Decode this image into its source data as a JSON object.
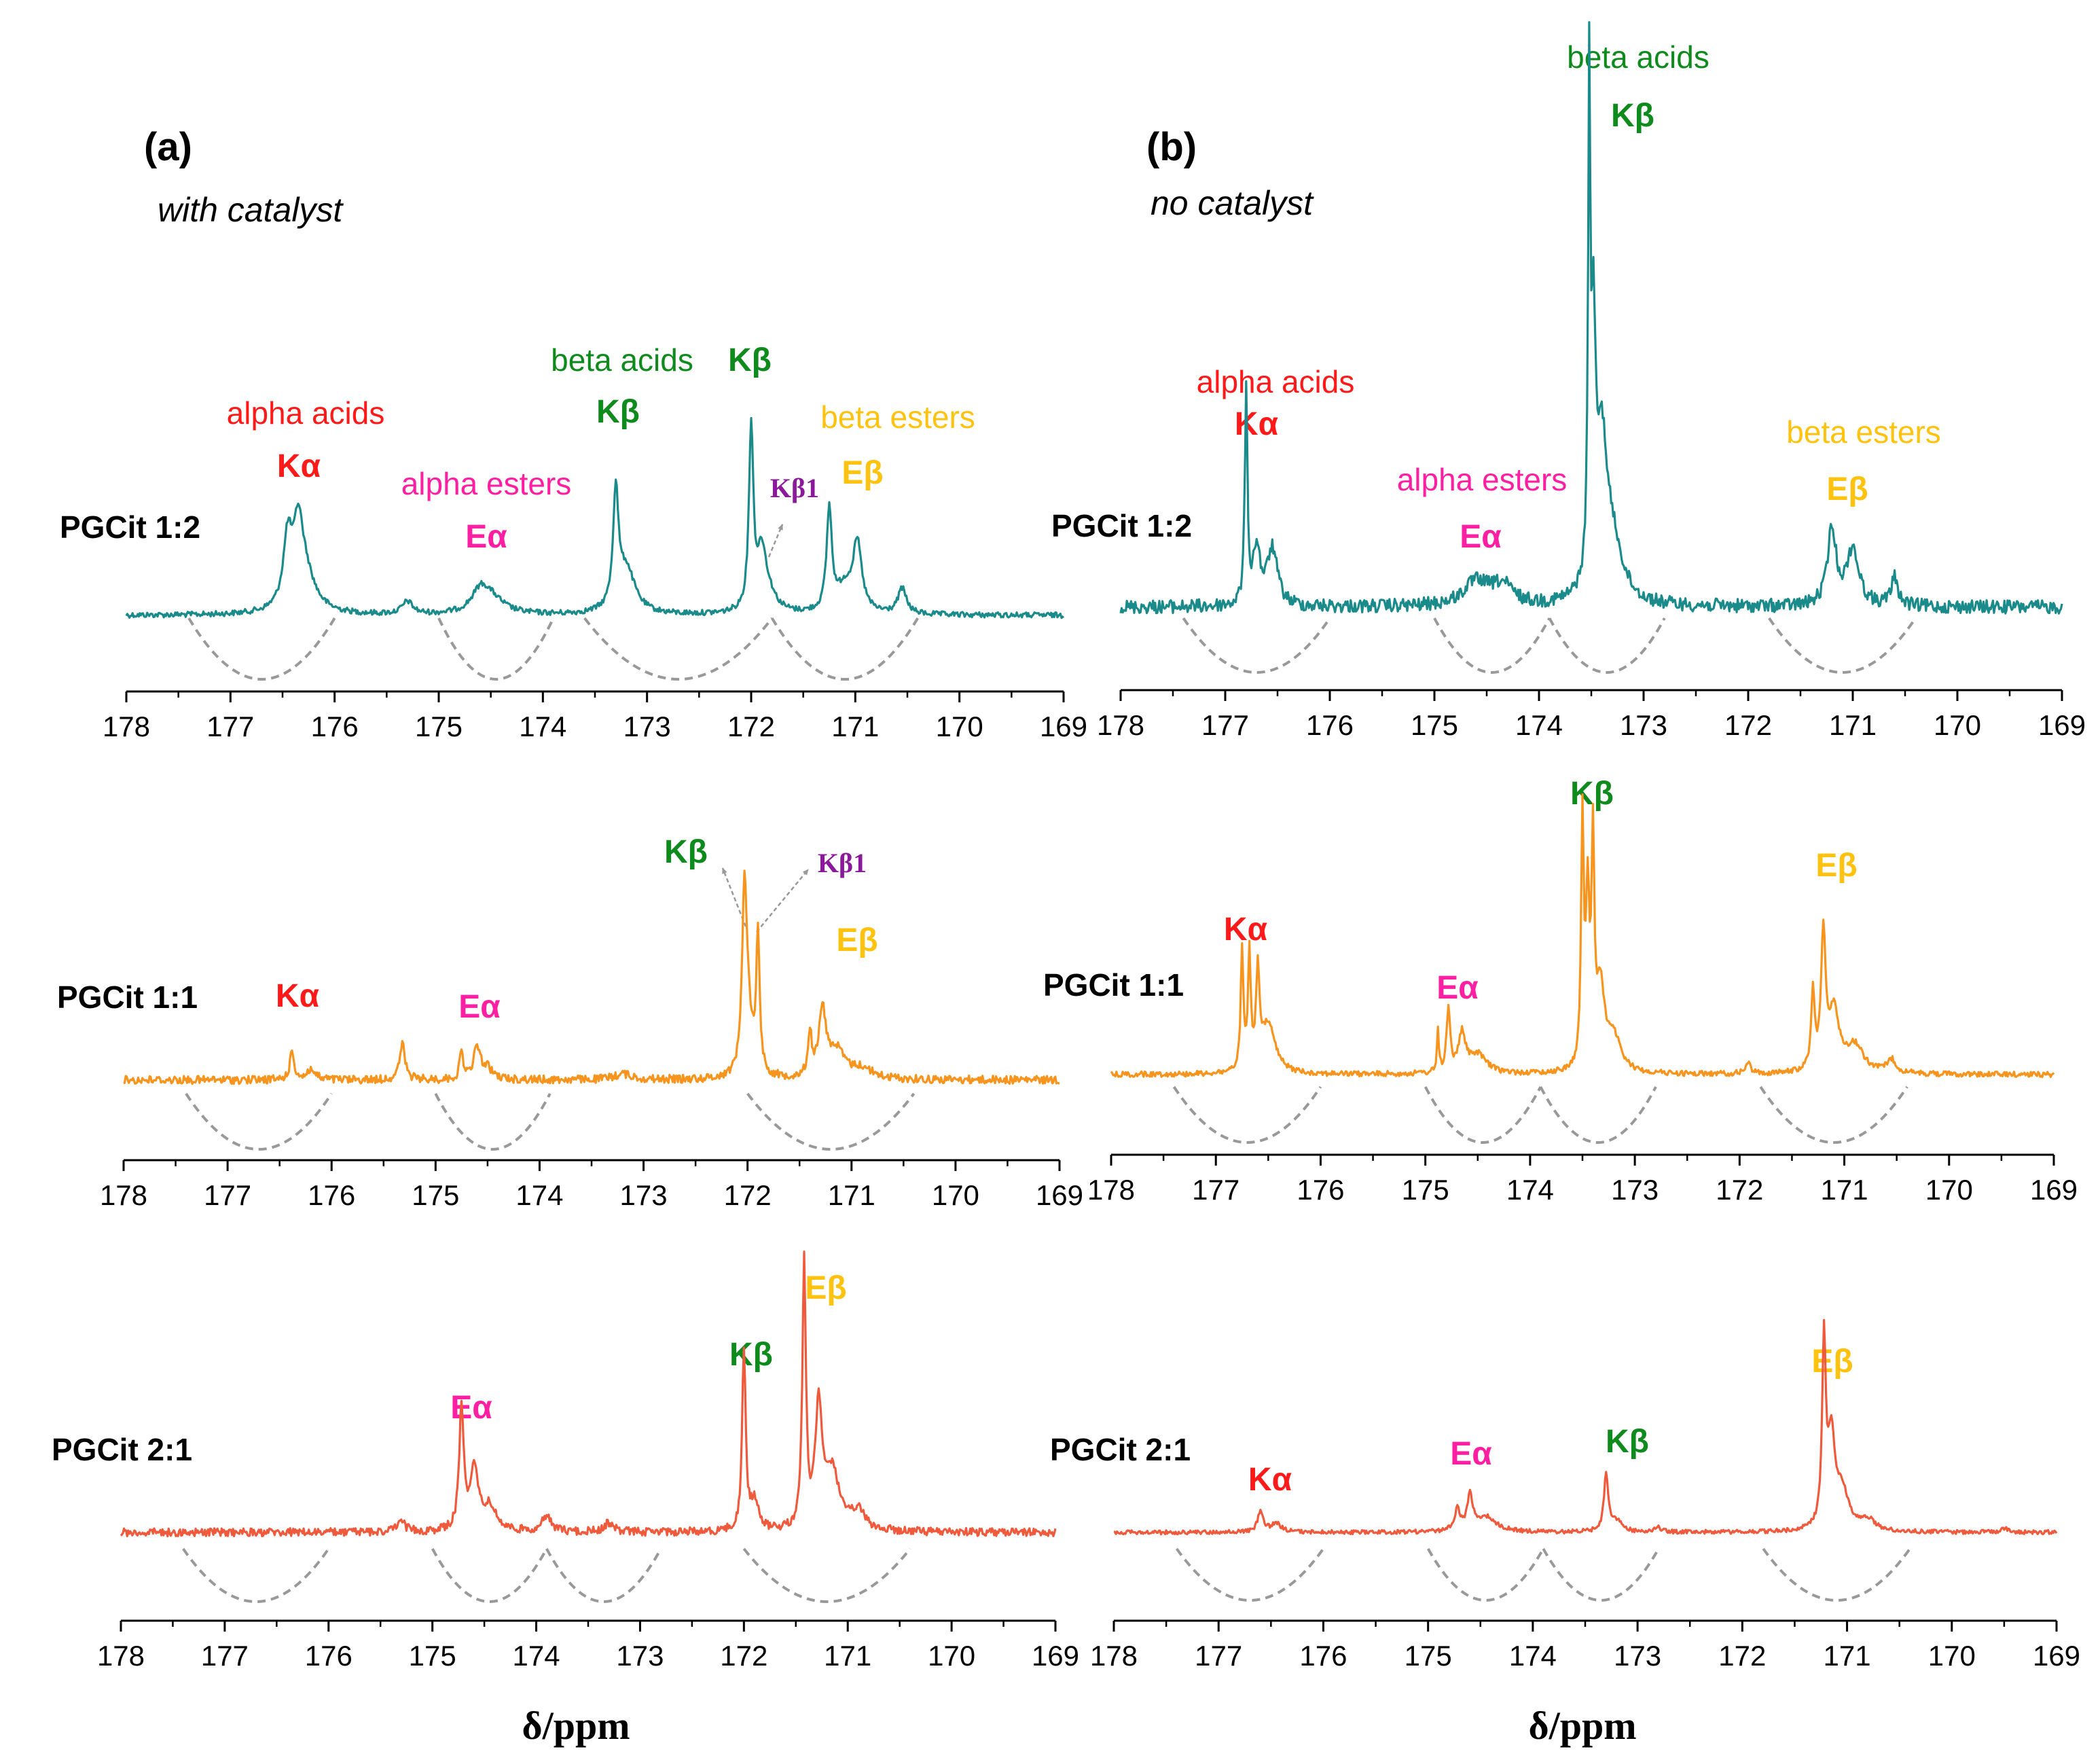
{
  "colors": {
    "teal": "#1a8a8a",
    "orange": "#f7941d",
    "red_orange": "#ef5a3c",
    "alpha_acid": "#ff1a1a",
    "alpha_ester": "#ff1fa3",
    "beta_acid": "#0f8a1c",
    "beta_ester": "#ffc20e",
    "k_beta1": "#8b1a9b",
    "bracket": "#999999"
  },
  "panels": {
    "a": {
      "letter": "(a)",
      "note": "with catalyst"
    },
    "b": {
      "letter": "(b)",
      "note": "no catalyst"
    }
  },
  "axis": {
    "title": "δ/ppm",
    "ticks": [
      "178",
      "177",
      "176",
      "175",
      "174",
      "173",
      "172",
      "171",
      "170",
      "169"
    ]
  },
  "chart_data": [
    {
      "type": "line",
      "panel": "a",
      "sample": "PGCit 1:2",
      "xlim": [
        178,
        169
      ],
      "color": "#1a8a8a",
      "peaks": [
        {
          "ppm": 176.45,
          "height": 0.26,
          "width": 0.05
        },
        {
          "ppm": 176.35,
          "height": 0.24,
          "width": 0.05
        },
        {
          "ppm": 176.3,
          "height": 0.18,
          "width": 0.12
        },
        {
          "ppm": 175.3,
          "height": 0.05,
          "width": 0.06
        },
        {
          "ppm": 174.6,
          "height": 0.08,
          "width": 0.1
        },
        {
          "ppm": 174.5,
          "height": 0.06,
          "width": 0.15
        },
        {
          "ppm": 173.3,
          "height": 0.45,
          "width": 0.03
        },
        {
          "ppm": 173.2,
          "height": 0.18,
          "width": 0.1
        },
        {
          "ppm": 172.0,
          "height": 0.72,
          "width": 0.025
        },
        {
          "ppm": 171.9,
          "height": 0.2,
          "width": 0.05
        },
        {
          "ppm": 171.85,
          "height": 0.08,
          "width": 0.1
        },
        {
          "ppm": 171.25,
          "height": 0.4,
          "width": 0.03
        },
        {
          "ppm": 171.1,
          "height": 0.1,
          "width": 0.1
        },
        {
          "ppm": 170.98,
          "height": 0.26,
          "width": 0.05
        },
        {
          "ppm": 170.55,
          "height": 0.1,
          "width": 0.05
        }
      ]
    },
    {
      "type": "line",
      "panel": "b",
      "sample": "PGCit 1:2",
      "xlim": [
        178,
        169
      ],
      "color": "#1a8a8a",
      "peaks": [
        {
          "ppm": 176.8,
          "height": 0.45,
          "width": 0.015
        },
        {
          "ppm": 176.7,
          "height": 0.12,
          "width": 0.04
        },
        {
          "ppm": 176.55,
          "height": 0.12,
          "width": 0.06
        },
        {
          "ppm": 174.6,
          "height": 0.05,
          "width": 0.15
        },
        {
          "ppm": 174.35,
          "height": 0.04,
          "width": 0.12
        },
        {
          "ppm": 173.52,
          "height": 1.0,
          "width": 0.012
        },
        {
          "ppm": 173.48,
          "height": 0.5,
          "width": 0.025
        },
        {
          "ppm": 173.4,
          "height": 0.3,
          "width": 0.06
        },
        {
          "ppm": 173.3,
          "height": 0.12,
          "width": 0.12
        },
        {
          "ppm": 171.2,
          "height": 0.16,
          "width": 0.05
        },
        {
          "ppm": 171.0,
          "height": 0.12,
          "width": 0.07
        },
        {
          "ppm": 170.6,
          "height": 0.06,
          "width": 0.04
        }
      ]
    },
    {
      "type": "line",
      "panel": "a",
      "sample": "PGCit 1:1",
      "xlim": [
        178,
        169
      ],
      "color": "#f7941d",
      "peaks": [
        {
          "ppm": 176.38,
          "height": 0.14,
          "width": 0.025
        },
        {
          "ppm": 176.2,
          "height": 0.05,
          "width": 0.05
        },
        {
          "ppm": 175.32,
          "height": 0.18,
          "width": 0.03
        },
        {
          "ppm": 174.75,
          "height": 0.14,
          "width": 0.02
        },
        {
          "ppm": 174.6,
          "height": 0.16,
          "width": 0.04
        },
        {
          "ppm": 174.5,
          "height": 0.05,
          "width": 0.06
        },
        {
          "ppm": 173.2,
          "height": 0.03,
          "width": 0.1
        },
        {
          "ppm": 172.03,
          "height": 0.82,
          "width": 0.025
        },
        {
          "ppm": 172.0,
          "height": 0.3,
          "width": 0.05
        },
        {
          "ppm": 171.9,
          "height": 0.68,
          "width": 0.02
        },
        {
          "ppm": 171.4,
          "height": 0.22,
          "width": 0.02
        },
        {
          "ppm": 171.28,
          "height": 0.32,
          "width": 0.04
        },
        {
          "ppm": 171.15,
          "height": 0.14,
          "width": 0.1
        },
        {
          "ppm": 170.9,
          "height": 0.05,
          "width": 0.12
        }
      ]
    },
    {
      "type": "line",
      "panel": "b",
      "sample": "PGCit 1:1",
      "xlim": [
        178,
        169
      ],
      "color": "#f7941d",
      "peaks": [
        {
          "ppm": 176.75,
          "height": 0.44,
          "width": 0.015
        },
        {
          "ppm": 176.68,
          "height": 0.42,
          "width": 0.015
        },
        {
          "ppm": 176.6,
          "height": 0.34,
          "width": 0.02
        },
        {
          "ppm": 176.5,
          "height": 0.18,
          "width": 0.08
        },
        {
          "ppm": 174.88,
          "height": 0.16,
          "width": 0.01
        },
        {
          "ppm": 174.78,
          "height": 0.24,
          "width": 0.02
        },
        {
          "ppm": 174.65,
          "height": 0.14,
          "width": 0.04
        },
        {
          "ppm": 174.5,
          "height": 0.07,
          "width": 0.1
        },
        {
          "ppm": 173.5,
          "height": 0.9,
          "width": 0.015
        },
        {
          "ppm": 173.45,
          "height": 0.6,
          "width": 0.02
        },
        {
          "ppm": 173.4,
          "height": 0.78,
          "width": 0.015
        },
        {
          "ppm": 173.33,
          "height": 0.3,
          "width": 0.05
        },
        {
          "ppm": 173.2,
          "height": 0.12,
          "width": 0.08
        },
        {
          "ppm": 171.92,
          "height": 0.04,
          "width": 0.03
        },
        {
          "ppm": 171.3,
          "height": 0.28,
          "width": 0.02
        },
        {
          "ppm": 171.2,
          "height": 0.5,
          "width": 0.025
        },
        {
          "ppm": 171.1,
          "height": 0.22,
          "width": 0.06
        },
        {
          "ppm": 170.9,
          "height": 0.1,
          "width": 0.1
        },
        {
          "ppm": 170.55,
          "height": 0.05,
          "width": 0.05
        }
      ]
    },
    {
      "type": "line",
      "panel": "a",
      "sample": "PGCit 2:1",
      "xlim": [
        178,
        169
      ],
      "color": "#ef5a3c",
      "peaks": [
        {
          "ppm": 175.3,
          "height": 0.04,
          "width": 0.05
        },
        {
          "ppm": 174.72,
          "height": 0.52,
          "width": 0.025
        },
        {
          "ppm": 174.6,
          "height": 0.25,
          "width": 0.05
        },
        {
          "ppm": 174.45,
          "height": 0.1,
          "width": 0.08
        },
        {
          "ppm": 173.9,
          "height": 0.06,
          "width": 0.06
        },
        {
          "ppm": 173.3,
          "height": 0.04,
          "width": 0.05
        },
        {
          "ppm": 172.0,
          "height": 0.77,
          "width": 0.02
        },
        {
          "ppm": 171.9,
          "height": 0.12,
          "width": 0.05
        },
        {
          "ppm": 171.42,
          "height": 1.12,
          "width": 0.02
        },
        {
          "ppm": 171.28,
          "height": 0.5,
          "width": 0.04
        },
        {
          "ppm": 171.15,
          "height": 0.25,
          "width": 0.08
        },
        {
          "ppm": 170.9,
          "height": 0.08,
          "width": 0.08
        }
      ]
    },
    {
      "type": "line",
      "panel": "b",
      "sample": "PGCit 2:1",
      "xlim": [
        178,
        169
      ],
      "color": "#ef5a3c",
      "peaks": [
        {
          "ppm": 176.6,
          "height": 0.1,
          "width": 0.03
        },
        {
          "ppm": 176.45,
          "height": 0.04,
          "width": 0.06
        },
        {
          "ppm": 174.72,
          "height": 0.1,
          "width": 0.03
        },
        {
          "ppm": 174.6,
          "height": 0.16,
          "width": 0.03
        },
        {
          "ppm": 174.45,
          "height": 0.07,
          "width": 0.12
        },
        {
          "ppm": 173.3,
          "height": 0.26,
          "width": 0.025
        },
        {
          "ppm": 173.2,
          "height": 0.05,
          "width": 0.06
        },
        {
          "ppm": 172.8,
          "height": 0.02,
          "width": 0.04
        },
        {
          "ppm": 171.22,
          "height": 0.85,
          "width": 0.02
        },
        {
          "ppm": 171.15,
          "height": 0.4,
          "width": 0.04
        },
        {
          "ppm": 171.05,
          "height": 0.18,
          "width": 0.08
        },
        {
          "ppm": 170.8,
          "height": 0.05,
          "width": 0.08
        },
        {
          "ppm": 169.5,
          "height": 0.02,
          "width": 0.04
        }
      ]
    }
  ],
  "integration_regions": {
    "a1": [
      [
        177.4,
        176.0
      ],
      [
        175.0,
        173.9
      ],
      [
        173.6,
        171.8
      ],
      [
        171.8,
        170.4
      ]
    ],
    "b1": [
      [
        177.4,
        176.0
      ],
      [
        175.0,
        173.9
      ],
      [
        173.9,
        172.8
      ],
      [
        171.8,
        170.4
      ]
    ],
    "a2": [
      [
        177.4,
        176.0
      ],
      [
        175.0,
        173.9
      ],
      [
        172.0,
        170.4
      ]
    ],
    "b2": [
      [
        177.4,
        176.0
      ],
      [
        175.0,
        173.9
      ],
      [
        173.9,
        172.8
      ],
      [
        171.8,
        170.4
      ]
    ],
    "a3": [
      [
        177.4,
        176.0
      ],
      [
        175.0,
        173.9
      ],
      [
        173.9,
        172.8
      ],
      [
        172.0,
        170.4
      ]
    ],
    "b3": [
      [
        177.4,
        176.0
      ],
      [
        175.0,
        173.9
      ],
      [
        173.9,
        172.8
      ],
      [
        171.8,
        170.4
      ]
    ]
  },
  "labels": {
    "a1": {
      "sample": "PGCit 1:2",
      "alpha_acids": "alpha acids",
      "k_alpha": "Kα",
      "alpha_esters": "alpha esters",
      "e_alpha": "Eα",
      "beta_acids": "beta acids",
      "k_beta_1": "Kβ",
      "k_beta_2": "Kβ",
      "k_beta1": "Kβ1",
      "beta_esters": "beta esters",
      "e_beta": "Eβ"
    },
    "b1": {
      "sample": "PGCit 1:2",
      "beta_acids": "beta acids",
      "k_beta": "Kβ",
      "alpha_acids": "alpha acids",
      "k_alpha": "Kα",
      "alpha_esters": "alpha esters",
      "e_alpha": "Eα",
      "beta_esters": "beta esters",
      "e_beta": "Eβ"
    },
    "a2": {
      "sample": "PGCit 1:1",
      "k_alpha": "Kα",
      "e_alpha": "Eα",
      "k_beta": "Kβ",
      "k_beta1": "Kβ1",
      "e_beta": "Eβ"
    },
    "b2": {
      "sample": "PGCit 1:1",
      "k_alpha": "Kα",
      "e_alpha": "Eα",
      "k_beta": "Kβ",
      "e_beta": "Eβ"
    },
    "a3": {
      "sample": "PGCit 2:1",
      "e_alpha": "Eα",
      "k_beta": "Kβ",
      "e_beta": "Eβ"
    },
    "b3": {
      "sample": "PGCit 2:1",
      "k_alpha": "Kα",
      "e_alpha": "Eα",
      "k_beta": "Kβ",
      "e_beta": "Eβ"
    }
  }
}
